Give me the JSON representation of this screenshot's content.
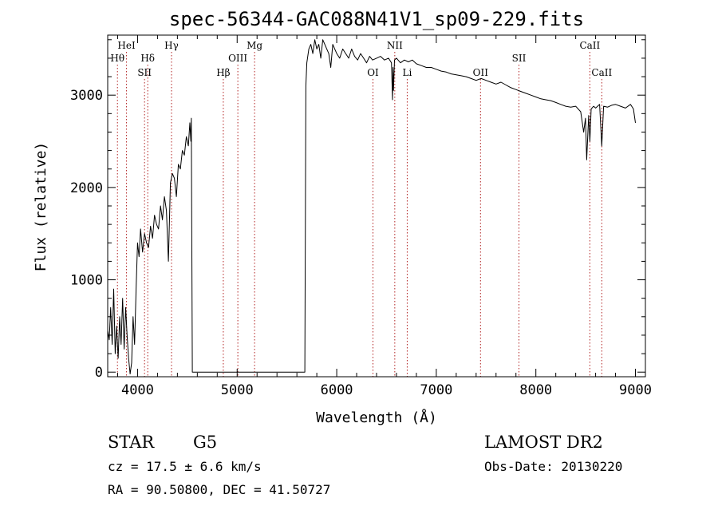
{
  "chart_data": {
    "type": "line",
    "title": "spec-56344-GAC088N41V1_sp09-229.fits",
    "xlabel": "Wavelength (Å)",
    "ylabel": "Flux (relative)",
    "xlim": [
      3700,
      9100
    ],
    "ylim": [
      -50,
      3650
    ],
    "x_ticks": [
      4000,
      5000,
      6000,
      7000,
      8000,
      9000
    ],
    "y_ticks": [
      0,
      1000,
      2000,
      3000
    ],
    "grid": false,
    "series": [
      {
        "name": "",
        "x": [
          3700,
          3715,
          3730,
          3745,
          3760,
          3775,
          3790,
          3805,
          3820,
          3835,
          3850,
          3865,
          3880,
          3895,
          3910,
          3925,
          3940,
          3955,
          3970,
          3985,
          4000,
          4015,
          4030,
          4050,
          4070,
          4090,
          4110,
          4130,
          4150,
          4170,
          4190,
          4210,
          4230,
          4250,
          4270,
          4290,
          4310,
          4330,
          4350,
          4370,
          4390,
          4410,
          4430,
          4450,
          4470,
          4490,
          4510,
          4525,
          4535,
          4540,
          4550,
          5000,
          5500,
          5680,
          5690,
          5700,
          5720,
          5740,
          5760,
          5780,
          5800,
          5820,
          5840,
          5860,
          5880,
          5900,
          5920,
          5940,
          5960,
          5980,
          6000,
          6030,
          6060,
          6090,
          6120,
          6150,
          6180,
          6210,
          6240,
          6270,
          6300,
          6330,
          6360,
          6400,
          6440,
          6480,
          6520,
          6550,
          6560,
          6565,
          6570,
          6580,
          6600,
          6640,
          6680,
          6720,
          6760,
          6800,
          6850,
          6900,
          6950,
          7000,
          7050,
          7100,
          7150,
          7200,
          7250,
          7300,
          7350,
          7400,
          7450,
          7500,
          7550,
          7600,
          7650,
          7700,
          7750,
          7800,
          7850,
          7900,
          7950,
          8000,
          8050,
          8100,
          8150,
          8200,
          8250,
          8300,
          8350,
          8400,
          8450,
          8480,
          8498,
          8510,
          8530,
          8542,
          8555,
          8580,
          8600,
          8640,
          8662,
          8680,
          8720,
          8760,
          8800,
          8850,
          8900,
          8950,
          8980,
          9000
        ],
        "y": [
          450,
          350,
          700,
          300,
          900,
          200,
          500,
          150,
          600,
          300,
          800,
          250,
          700,
          400,
          150,
          -20,
          100,
          600,
          300,
          900,
          1400,
          1250,
          1550,
          1300,
          1500,
          1400,
          1350,
          1580,
          1450,
          1700,
          1600,
          1550,
          1800,
          1650,
          1900,
          1750,
          1200,
          2050,
          2150,
          2100,
          1900,
          2250,
          2200,
          2400,
          2350,
          2550,
          2450,
          2700,
          2500,
          2750,
          0,
          0,
          0,
          0,
          3100,
          3350,
          3500,
          3550,
          3450,
          3600,
          3500,
          3550,
          3400,
          3600,
          3550,
          3500,
          3450,
          3300,
          3550,
          3500,
          3450,
          3400,
          3500,
          3450,
          3400,
          3500,
          3420,
          3380,
          3450,
          3400,
          3350,
          3420,
          3380,
          3400,
          3420,
          3380,
          3400,
          3350,
          2950,
          3300,
          3050,
          3380,
          3400,
          3350,
          3380,
          3360,
          3380,
          3340,
          3320,
          3300,
          3300,
          3280,
          3260,
          3250,
          3230,
          3220,
          3210,
          3200,
          3180,
          3160,
          3180,
          3160,
          3140,
          3120,
          3140,
          3110,
          3080,
          3060,
          3040,
          3020,
          3000,
          2980,
          2960,
          2950,
          2940,
          2920,
          2900,
          2880,
          2870,
          2880,
          2820,
          2600,
          2750,
          2300,
          2780,
          2500,
          2850,
          2880,
          2860,
          2900,
          2450,
          2880,
          2870,
          2890,
          2900,
          2880,
          2860,
          2900,
          2850,
          2700
        ]
      }
    ],
    "spectral_lines": [
      {
        "label": "HeI",
        "wavelength": 3889,
        "row": 0
      },
      {
        "label": "Hθ",
        "wavelength": 3798,
        "row": 1
      },
      {
        "label": "Hδ",
        "wavelength": 4102,
        "row": 1
      },
      {
        "label": "SII",
        "wavelength": 4070,
        "row": 2
      },
      {
        "label": "Hγ",
        "wavelength": 4341,
        "row": 0
      },
      {
        "label": "Mg",
        "wavelength": 5175,
        "row": 0
      },
      {
        "label": "OIII",
        "wavelength": 5007,
        "row": 1
      },
      {
        "label": "Hβ",
        "wavelength": 4861,
        "row": 2
      },
      {
        "label": "NII",
        "wavelength": 6583,
        "row": 0
      },
      {
        "label": "OI",
        "wavelength": 6364,
        "row": 2
      },
      {
        "label": "Li",
        "wavelength": 6708,
        "row": 2
      },
      {
        "label": "OII",
        "wavelength": 7444,
        "row": 2
      },
      {
        "label": "SII",
        "wavelength": 7830,
        "row": 1
      },
      {
        "label": "CaII",
        "wavelength": 8542,
        "row": 0
      },
      {
        "label": "CaII",
        "wavelength": 8662,
        "row": 2
      }
    ]
  },
  "info": {
    "object_class": "STAR",
    "subclass": "G5",
    "survey": "LAMOST DR2",
    "redshift": "cz = 17.5 ± 6.6 km/s",
    "obs_date": "Obs-Date: 20130220",
    "coordinates": "RA =  90.50800, DEC =  41.50727"
  },
  "colors": {
    "spectrum": "#000000",
    "line_markers": "#b22222",
    "axes": "#000000"
  }
}
